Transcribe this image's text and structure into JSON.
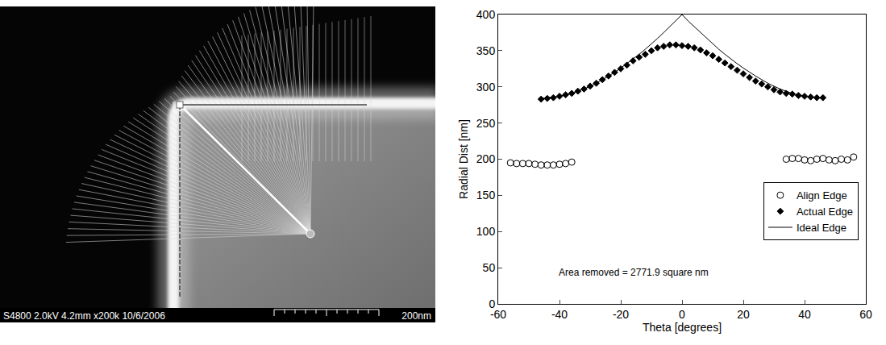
{
  "image_panel": {
    "caption": "S4800 2.0kV 4.2mm x200k 10/6/2006",
    "scale_label": "200nm"
  },
  "chart_data": {
    "type": "scatter",
    "x_title": "Theta [degrees]",
    "y_title": "Radial Dist [nm]",
    "xlim": [
      -60,
      60
    ],
    "xticks": [
      -60,
      -40,
      -20,
      0,
      20,
      40,
      60
    ],
    "ylim": [
      0,
      400
    ],
    "yticks": [
      0,
      50,
      100,
      150,
      200,
      250,
      300,
      350,
      400
    ],
    "grid": false,
    "legend": "right",
    "annotations": [
      "Area removed = 2771.9 square nm"
    ],
    "series": [
      {
        "name": "Align Edge",
        "type": "scatter",
        "marker": "circle-open",
        "color": "#000000",
        "x": [
          -56,
          -54,
          -52,
          -50,
          -48,
          -46,
          -44,
          -42,
          -40,
          -38,
          -36,
          34,
          36,
          38,
          40,
          42,
          44,
          46,
          48,
          50,
          52,
          54,
          56
        ],
        "values": [
          195,
          194,
          194,
          194,
          193,
          192,
          192,
          192,
          193,
          194,
          196,
          200,
          201,
          201,
          199,
          198,
          200,
          201,
          199,
          198,
          200,
          199,
          203
        ]
      },
      {
        "name": "Actual Edge",
        "type": "scatter",
        "marker": "diamond",
        "color": "#000000",
        "x": [
          -46,
          -44,
          -42,
          -40,
          -38,
          -36,
          -34,
          -32,
          -30,
          -28,
          -26,
          -24,
          -22,
          -20,
          -18,
          -16,
          -14,
          -12,
          -10,
          -8,
          -6,
          -4,
          -2,
          0,
          2,
          4,
          6,
          8,
          10,
          12,
          14,
          16,
          18,
          20,
          22,
          24,
          26,
          28,
          30,
          32,
          34,
          36,
          38,
          40,
          42,
          44,
          46
        ],
        "values": [
          283,
          284,
          285,
          287,
          289,
          291,
          294,
          297,
          301,
          305,
          310,
          315,
          320,
          325,
          330,
          336,
          341,
          345,
          350,
          354,
          356,
          358,
          358,
          357,
          356,
          354,
          351,
          347,
          343,
          338,
          333,
          328,
          323,
          318,
          313,
          308,
          304,
          300,
          296,
          293,
          291,
          290,
          288,
          287,
          286,
          285,
          285
        ]
      },
      {
        "name": "Ideal Edge",
        "type": "line",
        "line_style": "solid",
        "color": "#000000",
        "x": [
          -46,
          -44,
          -42,
          -40,
          -38,
          -36,
          -34,
          -32,
          -30,
          -28,
          -26,
          -24,
          -22,
          -20,
          -18,
          -16,
          -14,
          -12,
          -10,
          -8,
          -6,
          -4,
          -2,
          0,
          2,
          4,
          6,
          8,
          10,
          12,
          14,
          16,
          18,
          20,
          22,
          24,
          26,
          28,
          30,
          32,
          34,
          36,
          38,
          40,
          42,
          44,
          46
        ],
        "values": [
          284,
          285,
          286,
          287,
          289,
          291,
          294,
          297,
          301,
          305,
          310,
          315,
          320,
          326,
          332,
          338,
          345,
          352,
          359,
          367,
          375,
          383,
          391,
          400,
          391,
          383,
          375,
          367,
          359,
          352,
          345,
          338,
          332,
          326,
          320,
          315,
          310,
          305,
          301,
          297,
          294,
          291,
          289,
          287,
          286,
          285,
          284
        ]
      }
    ]
  }
}
